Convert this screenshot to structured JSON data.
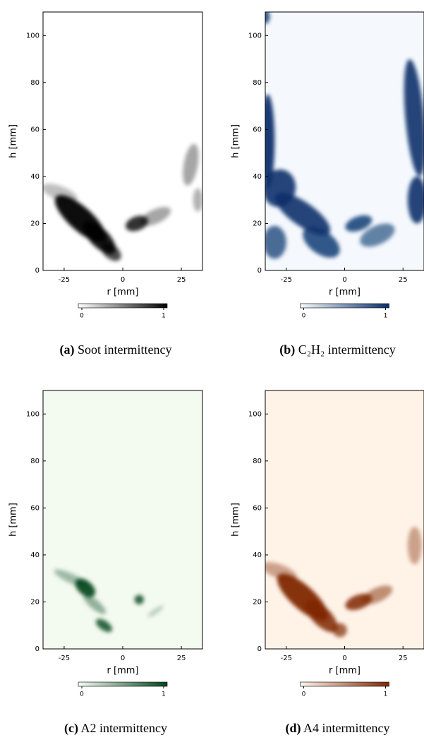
{
  "chart_data": [
    {
      "type": "field",
      "label": "(a)",
      "caption": "Soot intermittency",
      "xlabel": "r [mm]",
      "ylabel": "h [mm]",
      "xlim": [
        -34,
        34
      ],
      "ylim": [
        0,
        110
      ],
      "xticks": [
        -25,
        0,
        25
      ],
      "yticks": [
        0,
        20,
        40,
        60,
        80,
        100
      ],
      "cmap": [
        "#ffffff",
        "#000000"
      ],
      "background": "#ffffff",
      "clim": [
        0,
        1
      ],
      "cticks": [
        0,
        1
      ]
    },
    {
      "type": "field",
      "label": "(b)",
      "caption": "C₂H₂ intermittency",
      "xlabel": "r [mm]",
      "ylabel": "h [mm]",
      "xlim": [
        -34,
        34
      ],
      "ylim": [
        0,
        110
      ],
      "xticks": [
        -25,
        0,
        25
      ],
      "yticks": [
        0,
        20,
        40,
        60,
        80,
        100
      ],
      "cmap": [
        "#f7fbff",
        "#08306b"
      ],
      "background": "#f5f9fe",
      "clim": [
        0,
        1
      ],
      "cticks": [
        0,
        1
      ]
    },
    {
      "type": "field",
      "label": "(c)",
      "caption": "A2 intermittency",
      "xlabel": "r [mm]",
      "ylabel": "h [mm]",
      "xlim": [
        -34,
        34
      ],
      "ylim": [
        0,
        110
      ],
      "xticks": [
        -25,
        0,
        25
      ],
      "yticks": [
        0,
        20,
        40,
        60,
        80,
        100
      ],
      "cmap": [
        "#f7fcf5",
        "#00441b"
      ],
      "background": "#f3faf0",
      "clim": [
        0,
        1
      ],
      "cticks": [
        0,
        1
      ]
    },
    {
      "type": "field",
      "label": "(d)",
      "caption": "A4 intermittency",
      "xlabel": "r [mm]",
      "ylabel": "h [mm]",
      "xlim": [
        -34,
        34
      ],
      "ylim": [
        0,
        110
      ],
      "xticks": [
        -25,
        0,
        25
      ],
      "yticks": [
        0,
        20,
        40,
        60,
        80,
        100
      ],
      "cmap": [
        "#fff5eb",
        "#7f2704"
      ],
      "background": "#fff3e7",
      "clim": [
        0,
        1
      ],
      "cticks": [
        0,
        1
      ]
    }
  ]
}
